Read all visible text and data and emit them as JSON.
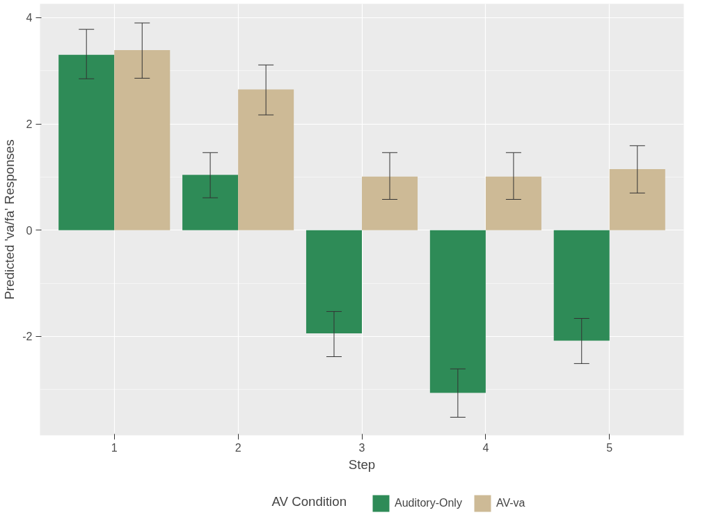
{
  "chart_data": {
    "type": "bar",
    "xlabel": "Step",
    "ylabel": "Predicted 'va/fa' Responses",
    "legend_title": "AV Condition",
    "categories": [
      "1",
      "2",
      "3",
      "4",
      "5"
    ],
    "series": [
      {
        "name": "Auditory-Only",
        "color": "#2e8b57",
        "values": [
          3.3,
          1.04,
          -1.94,
          -3.06,
          -2.08
        ],
        "errors": [
          [
            2.85,
            3.78
          ],
          [
            0.61,
            1.46
          ],
          [
            -2.38,
            -1.53
          ],
          [
            -3.52,
            -2.61
          ],
          [
            -2.51,
            -1.66
          ]
        ]
      },
      {
        "name": "AV-va",
        "color": "#cdba96",
        "values": [
          3.39,
          2.65,
          1.01,
          1.01,
          1.15
        ],
        "errors": [
          [
            2.86,
            3.9
          ],
          [
            2.17,
            3.11
          ],
          [
            0.58,
            1.46
          ],
          [
            0.58,
            1.46
          ],
          [
            0.7,
            1.59
          ]
        ]
      }
    ],
    "ylim": [
      -3.86,
      4.26
    ],
    "yticks": [
      -2,
      0,
      2,
      4
    ],
    "grid": true,
    "legend": "bottom"
  }
}
